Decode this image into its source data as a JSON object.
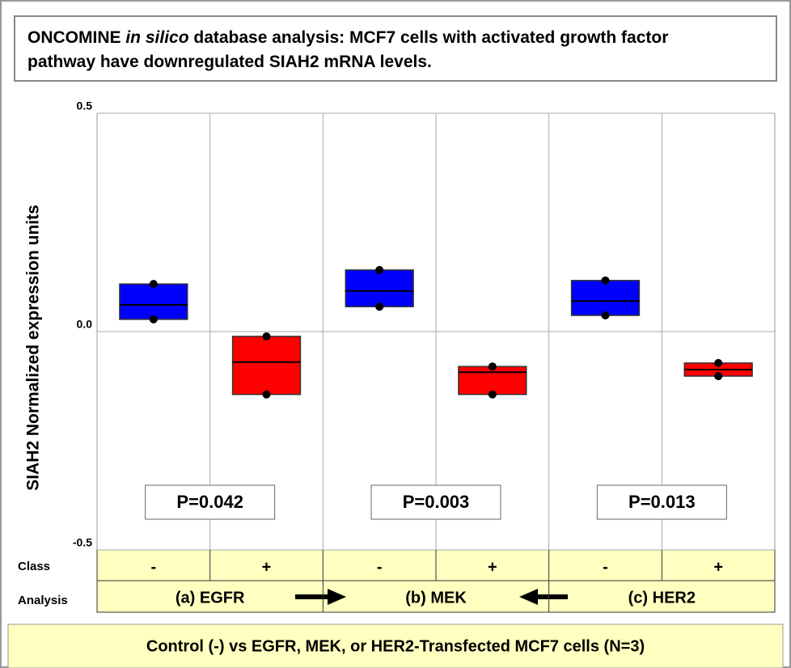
{
  "chart_data": {
    "type": "box",
    "title": [
      "ONCOMINE ",
      "in silico",
      " database analysis: MCF7 cells with activated growth factor pathway have downregulated SIAH2 mRNA levels."
    ],
    "y_label": "SIAH2 Normalized expression units",
    "category_axis_label": "Class",
    "categories": [
      "-",
      "+",
      "-",
      "+",
      "-",
      "+"
    ],
    "group_axis_label": "Analysis",
    "groups": [
      "(a) EGFR",
      "(b) MEK",
      "(c) HER2"
    ],
    "max": [
      0.109,
      -0.011,
      0.141,
      -0.08,
      0.117,
      -0.072
    ],
    "median": [
      0.061,
      -0.07,
      0.093,
      -0.093,
      0.07,
      -0.087
    ],
    "min": [
      0.028,
      -0.144,
      0.057,
      -0.144,
      0.037,
      -0.102
    ],
    "colors": [
      "#0000ff",
      "#ff0000",
      "#0000ff",
      "#ff0000",
      "#0000ff",
      "#ff0000"
    ],
    "ylim": [
      -0.5,
      0.5
    ],
    "yticks": [
      -0.5,
      {
        "value": 0,
        "label": "0.0"
      },
      0.5
    ],
    "grid": true,
    "annotations": [
      "P=0.042",
      "P=0.003",
      "P=0.013"
    ],
    "footer": "Control (-) vs EGFR, MEK, or HER2-Transfected MCF7 cells (N=3)"
  }
}
